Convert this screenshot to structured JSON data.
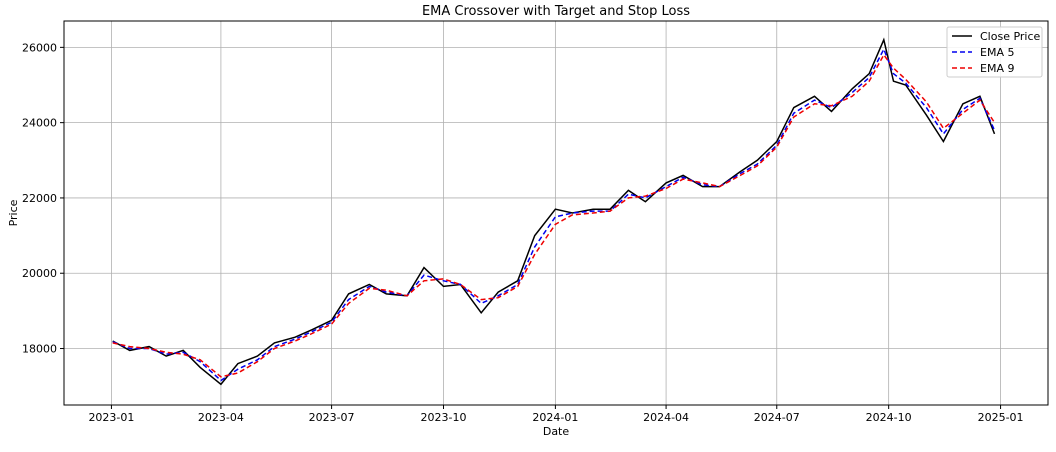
{
  "chart_data": {
    "type": "line",
    "title": "EMA Crossover with Target and Stop Loss",
    "xlabel": "Date",
    "ylabel": "Price",
    "x_ticks": [
      "2023-01",
      "2023-04",
      "2023-07",
      "2023-10",
      "2024-01",
      "2024-04",
      "2024-07",
      "2024-10",
      "2025-01"
    ],
    "y_ticks": [
      18000,
      20000,
      22000,
      24000,
      26000
    ],
    "xlim": [
      "2022-11-23",
      "2025-02-09"
    ],
    "ylim": [
      16500,
      26700
    ],
    "grid": true,
    "legend_position": "top-right",
    "x": [
      "2023-01-02",
      "2023-01-16",
      "2023-02-01",
      "2023-02-15",
      "2023-03-01",
      "2023-03-15",
      "2023-04-01",
      "2023-04-15",
      "2023-05-01",
      "2023-05-15",
      "2023-06-01",
      "2023-06-15",
      "2023-07-01",
      "2023-07-15",
      "2023-08-01",
      "2023-08-15",
      "2023-09-01",
      "2023-09-15",
      "2023-10-01",
      "2023-10-15",
      "2023-11-01",
      "2023-11-15",
      "2023-12-01",
      "2023-12-15",
      "2024-01-01",
      "2024-01-15",
      "2024-02-01",
      "2024-02-15",
      "2024-03-01",
      "2024-03-15",
      "2024-04-01",
      "2024-04-15",
      "2024-05-01",
      "2024-05-15",
      "2024-06-01",
      "2024-06-15",
      "2024-07-01",
      "2024-07-15",
      "2024-08-01",
      "2024-08-15",
      "2024-09-01",
      "2024-09-15",
      "2024-09-27",
      "2024-10-05",
      "2024-10-15",
      "2024-11-01",
      "2024-11-15",
      "2024-12-01",
      "2024-12-15",
      "2024-12-27"
    ],
    "series": [
      {
        "name": "Close Price",
        "color": "#000000",
        "dash": "solid",
        "values": [
          18200,
          17950,
          18050,
          17800,
          17950,
          17500,
          17050,
          17600,
          17800,
          18150,
          18300,
          18500,
          18750,
          19450,
          19700,
          19450,
          19400,
          20150,
          19650,
          19700,
          18950,
          19500,
          19800,
          21000,
          21700,
          21600,
          21700,
          21700,
          22200,
          21900,
          22400,
          22600,
          22300,
          22300,
          22700,
          23000,
          23500,
          24400,
          24700,
          24300,
          24900,
          25300,
          26200,
          25100,
          25000,
          24200,
          23500,
          24500,
          24700,
          23700
        ]
      },
      {
        "name": "EMA 5",
        "color": "#0000ee",
        "dash": "5,3",
        "values": [
          18180,
          18000,
          18000,
          17850,
          17900,
          17650,
          17150,
          17450,
          17700,
          18050,
          18250,
          18450,
          18700,
          19300,
          19650,
          19500,
          19400,
          19950,
          19800,
          19700,
          19200,
          19400,
          19700,
          20700,
          21500,
          21600,
          21650,
          21650,
          22100,
          22000,
          22300,
          22550,
          22350,
          22300,
          22650,
          22900,
          23400,
          24250,
          24600,
          24400,
          24800,
          25200,
          25950,
          25300,
          25050,
          24400,
          23700,
          24350,
          24650,
          23800
        ]
      },
      {
        "name": "EMA 9",
        "color": "#ee0000",
        "dash": "5,3",
        "values": [
          18150,
          18050,
          18000,
          17900,
          17850,
          17700,
          17250,
          17350,
          17650,
          18000,
          18200,
          18400,
          18650,
          19200,
          19600,
          19550,
          19400,
          19800,
          19850,
          19700,
          19300,
          19350,
          19650,
          20500,
          21300,
          21550,
          21600,
          21650,
          22000,
          22050,
          22250,
          22500,
          22400,
          22300,
          22600,
          22850,
          23350,
          24150,
          24500,
          24450,
          24700,
          25100,
          25800,
          25450,
          25150,
          24550,
          23850,
          24250,
          24600,
          24000
        ]
      }
    ]
  }
}
